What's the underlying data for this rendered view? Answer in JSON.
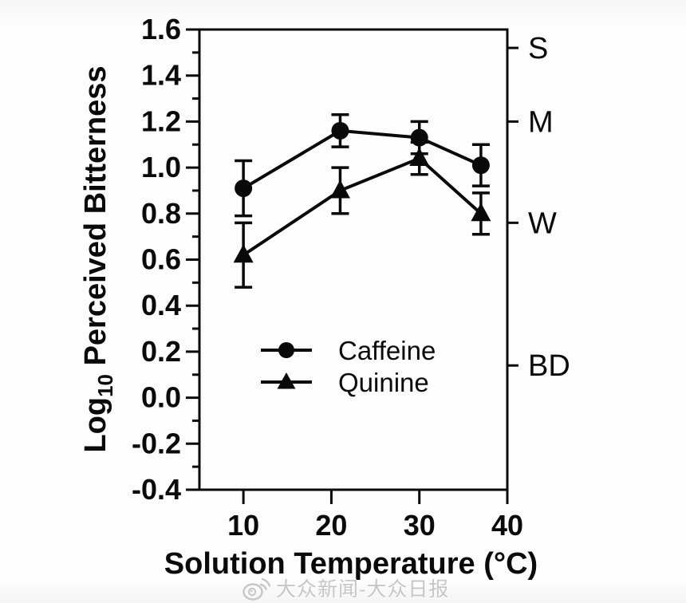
{
  "chart_data": {
    "type": "line",
    "title": "",
    "xlabel": "Solution Temperature (°C)",
    "ylabel": {
      "prefix": "Log",
      "subscript": "10",
      "suffix": " Perceived Bitterness"
    },
    "x": [
      10,
      21,
      30,
      37
    ],
    "series": [
      {
        "name": "Caffeine",
        "marker": "circle",
        "values": [
          0.91,
          1.16,
          1.13,
          1.01
        ],
        "errors": [
          0.12,
          0.07,
          0.07,
          0.09
        ]
      },
      {
        "name": "Quinine",
        "marker": "triangle",
        "values": [
          0.62,
          0.9,
          1.04,
          0.8
        ],
        "errors": [
          0.14,
          0.1,
          0.07,
          0.09
        ]
      }
    ],
    "xlim": [
      5,
      40
    ],
    "ylim": [
      -0.4,
      1.6
    ],
    "x_ticks": [
      {
        "label": "10",
        "value": 10
      },
      {
        "label": "20",
        "value": 20
      },
      {
        "label": "30",
        "value": 30
      },
      {
        "label": "40",
        "value": 40
      }
    ],
    "y_ticks": [
      {
        "label": "1.6",
        "value": 1.6
      },
      {
        "label": "1.4",
        "value": 1.4
      },
      {
        "label": "1.2",
        "value": 1.2
      },
      {
        "label": "1.0",
        "value": 1.0
      },
      {
        "label": "0.8",
        "value": 0.8
      },
      {
        "label": "0.6",
        "value": 0.6
      },
      {
        "label": "0.4",
        "value": 0.4
      },
      {
        "label": "0.2",
        "value": 0.2
      },
      {
        "label": "0.0",
        "value": 0.0
      },
      {
        "label": "-0.2",
        "value": -0.2
      },
      {
        "label": "-0.4",
        "value": -0.4
      }
    ],
    "y_minor_step": 0.1,
    "right_axis_ticks": [
      {
        "label": "S",
        "value": 1.52
      },
      {
        "label": "M",
        "value": 1.2
      },
      {
        "label": "W",
        "value": 0.76
      },
      {
        "label": "BD",
        "value": 0.14
      }
    ],
    "legend": {
      "position": "inside-bottom-center",
      "entries": [
        "Caffeine",
        "Quinine"
      ]
    },
    "grid": false,
    "colors": {
      "data": "#0a0a0a",
      "background": "#fdfdfd",
      "watermark": "#c6c6c6"
    }
  },
  "watermark": {
    "icon": "weibo-icon",
    "text": "大众新闻-大众日报"
  }
}
